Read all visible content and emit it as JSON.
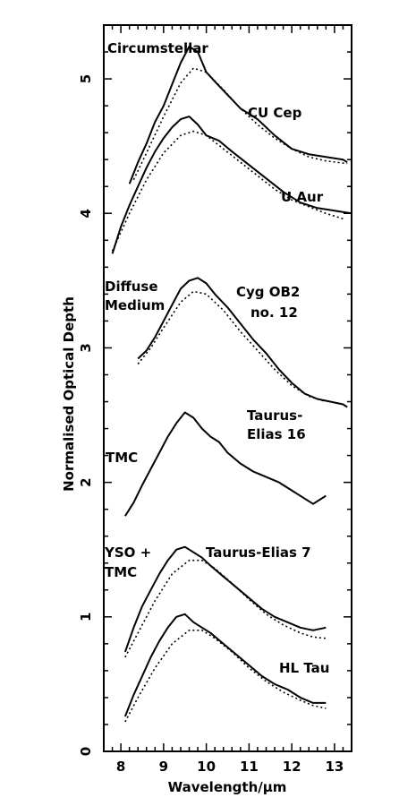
{
  "chart_data": {
    "type": "line",
    "xlabel": "Wavelength/μm",
    "ylabel": "Normalised Optical Depth",
    "xlim": [
      7.6,
      13.4
    ],
    "ylim": [
      0,
      5.4
    ],
    "x_ticks": [
      "8",
      "9",
      "10",
      "11",
      "12",
      "13"
    ],
    "y_ticks": [
      "0",
      "1",
      "2",
      "3",
      "4",
      "5"
    ],
    "group_labels": {
      "circumstellar": "Circumstellar",
      "diffuse_1": "Diffuse",
      "diffuse_2": "Medium",
      "tmc": "TMC",
      "yso_1": "YSO +",
      "yso_2": "TMC"
    },
    "source_labels": {
      "cu_cep": "CU Cep",
      "u_aur": "U Aur",
      "cyg_1": "Cyg OB2",
      "cyg_2": "no. 12",
      "te16_1": "Taurus-",
      "te16_2": "Elias 16",
      "te7": "Taurus-Elias 7",
      "hl_tau": "HL Tau"
    },
    "series": [
      {
        "id": "cu_cep",
        "style": "solid",
        "x": [
          8.2,
          8.4,
          8.6,
          8.8,
          9.0,
          9.2,
          9.4,
          9.6,
          9.8,
          10.0,
          10.2,
          10.5,
          10.8,
          11.2,
          11.6,
          12.0,
          12.4,
          12.8,
          13.2,
          13.3
        ],
        "y": [
          4.22,
          4.38,
          4.52,
          4.68,
          4.8,
          4.96,
          5.12,
          5.24,
          5.2,
          5.05,
          4.98,
          4.88,
          4.78,
          4.7,
          4.58,
          4.48,
          4.44,
          4.42,
          4.4,
          4.38
        ]
      },
      {
        "id": "cu_cep_model",
        "style": "dotted",
        "x": [
          8.3,
          8.6,
          9.0,
          9.4,
          9.7,
          10.0,
          10.4,
          10.8,
          11.2,
          11.6,
          12.0,
          12.4,
          12.8,
          13.3
        ],
        "y": [
          4.25,
          4.45,
          4.72,
          4.97,
          5.08,
          5.05,
          4.92,
          4.78,
          4.66,
          4.56,
          4.48,
          4.42,
          4.39,
          4.37
        ]
      },
      {
        "id": "u_aur",
        "style": "solid",
        "x": [
          7.8,
          8.0,
          8.2,
          8.4,
          8.6,
          8.8,
          9.0,
          9.2,
          9.4,
          9.6,
          9.8,
          10.0,
          10.3,
          10.6,
          11.0,
          11.4,
          11.8,
          12.2,
          12.6,
          13.0,
          13.4
        ],
        "y": [
          3.7,
          3.9,
          4.06,
          4.2,
          4.34,
          4.46,
          4.56,
          4.64,
          4.7,
          4.72,
          4.66,
          4.58,
          4.54,
          4.46,
          4.36,
          4.26,
          4.16,
          4.08,
          4.04,
          4.02,
          4.0
        ]
      },
      {
        "id": "u_aur_model",
        "style": "dotted",
        "x": [
          7.8,
          8.2,
          8.6,
          9.0,
          9.4,
          9.7,
          10.0,
          10.4,
          10.8,
          11.2,
          11.6,
          12.0,
          12.4,
          12.8,
          13.2
        ],
        "y": [
          3.72,
          4.0,
          4.25,
          4.45,
          4.58,
          4.61,
          4.58,
          4.48,
          4.38,
          4.28,
          4.18,
          4.1,
          4.05,
          4.0,
          3.96
        ]
      },
      {
        "id": "cyg_ob2",
        "style": "solid",
        "x": [
          8.4,
          8.6,
          8.8,
          9.0,
          9.2,
          9.4,
          9.6,
          9.8,
          10.0,
          10.2,
          10.5,
          10.8,
          11.1,
          11.4,
          11.7,
          12.0,
          12.3,
          12.6,
          12.9,
          13.2,
          13.3
        ],
        "y": [
          2.92,
          2.98,
          3.08,
          3.2,
          3.32,
          3.44,
          3.5,
          3.52,
          3.48,
          3.4,
          3.3,
          3.18,
          3.06,
          2.96,
          2.84,
          2.74,
          2.66,
          2.62,
          2.6,
          2.58,
          2.56
        ]
      },
      {
        "id": "cyg_ob2_model",
        "style": "dotted",
        "x": [
          8.4,
          8.7,
          9.0,
          9.4,
          9.7,
          10.0,
          10.4,
          10.8,
          11.2,
          11.6,
          12.0,
          12.4,
          12.8
        ],
        "y": [
          2.88,
          3.0,
          3.15,
          3.34,
          3.42,
          3.4,
          3.28,
          3.12,
          2.98,
          2.84,
          2.72,
          2.64,
          2.6
        ]
      },
      {
        "id": "taurus_elias_16",
        "style": "solid",
        "x": [
          8.1,
          8.3,
          8.5,
          8.7,
          8.9,
          9.1,
          9.3,
          9.5,
          9.7,
          9.9,
          10.1,
          10.3,
          10.5,
          10.8,
          11.1,
          11.4,
          11.7,
          12.0,
          12.3,
          12.5,
          12.8
        ],
        "y": [
          1.75,
          1.85,
          1.98,
          2.1,
          2.22,
          2.34,
          2.44,
          2.52,
          2.48,
          2.4,
          2.34,
          2.3,
          2.22,
          2.14,
          2.08,
          2.04,
          2.0,
          1.94,
          1.88,
          1.84,
          1.9
        ]
      },
      {
        "id": "te7",
        "style": "solid",
        "x": [
          8.1,
          8.3,
          8.5,
          8.7,
          8.9,
          9.1,
          9.3,
          9.5,
          9.7,
          9.9,
          10.1,
          10.4,
          10.7,
          11.0,
          11.3,
          11.6,
          11.9,
          12.2,
          12.5,
          12.8
        ],
        "y": [
          0.74,
          0.92,
          1.08,
          1.2,
          1.32,
          1.42,
          1.5,
          1.52,
          1.48,
          1.44,
          1.38,
          1.3,
          1.22,
          1.14,
          1.06,
          1.0,
          0.96,
          0.92,
          0.9,
          0.92
        ]
      },
      {
        "id": "te7_model",
        "style": "dotted",
        "x": [
          8.1,
          8.4,
          8.8,
          9.2,
          9.6,
          9.9,
          10.2,
          10.6,
          11.0,
          11.4,
          11.8,
          12.2,
          12.5,
          12.8
        ],
        "y": [
          0.7,
          0.88,
          1.12,
          1.32,
          1.42,
          1.42,
          1.36,
          1.25,
          1.13,
          1.02,
          0.94,
          0.88,
          0.85,
          0.84
        ]
      },
      {
        "id": "hl_tau",
        "style": "solid",
        "x": [
          8.1,
          8.3,
          8.5,
          8.7,
          8.9,
          9.1,
          9.3,
          9.5,
          9.7,
          9.9,
          10.1,
          10.4,
          10.7,
          11.0,
          11.3,
          11.6,
          11.9,
          12.2,
          12.5,
          12.8
        ],
        "y": [
          0.26,
          0.42,
          0.56,
          0.7,
          0.82,
          0.92,
          1.0,
          1.02,
          0.96,
          0.92,
          0.88,
          0.8,
          0.72,
          0.64,
          0.56,
          0.5,
          0.46,
          0.4,
          0.36,
          0.36
        ]
      },
      {
        "id": "hl_tau_model",
        "style": "dotted",
        "x": [
          8.1,
          8.4,
          8.8,
          9.2,
          9.6,
          9.9,
          10.2,
          10.6,
          11.0,
          11.4,
          11.8,
          12.2,
          12.5,
          12.8
        ],
        "y": [
          0.22,
          0.4,
          0.62,
          0.8,
          0.9,
          0.9,
          0.84,
          0.74,
          0.62,
          0.52,
          0.44,
          0.38,
          0.34,
          0.32
        ]
      }
    ]
  }
}
